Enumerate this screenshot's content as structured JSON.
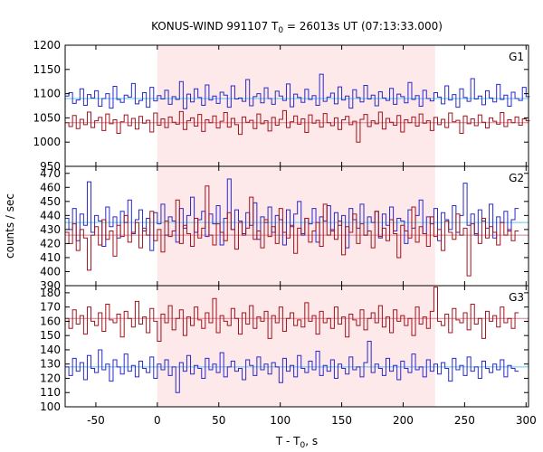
{
  "title": {
    "prefix": "KONUS-WIND 991107 T",
    "sub": "0",
    "suffix": " = 26013s UT (07:13:33.000)"
  },
  "ylabel": "counts / sec",
  "xlabel": {
    "prefix": "T - T",
    "sub": "0",
    "suffix": ", s"
  },
  "colors": {
    "red_series": "#a0141e",
    "blue_series": "#2a2ac8",
    "red_background_line": "#e07a8a",
    "blue_background_line": "#5fc6e8",
    "highlight": "#fde8ea",
    "axis": "#000000"
  },
  "chart_data": {
    "type": "line",
    "style": "step histogram, 3 stacked panels sharing x axis",
    "title": "KONUS-WIND 991107 T0 = 26013s UT (07:13:33.000)",
    "xlabel": "T - T0, s",
    "ylabel": "counts / sec",
    "xlim": [
      -75,
      302
    ],
    "xticks": [
      -50,
      0,
      50,
      100,
      150,
      200,
      250,
      300
    ],
    "highlight_interval": [
      0,
      226
    ],
    "bin_width_s": 3,
    "panels": [
      {
        "label": "G1",
        "ylim": [
          950,
          1200
        ],
        "yticks": [
          950,
          1000,
          1050,
          1100,
          1150,
          1200
        ],
        "blue_background": 1090,
        "red_background": 1040,
        "series": [
          {
            "color": "blue",
            "x_start": -75,
            "step": 3,
            "values": [
              1095,
              1102,
              1080,
              1087,
              1110,
              1076,
              1098,
              1091,
              1106,
              1074,
              1090,
              1100,
              1070,
              1115,
              1088,
              1082,
              1097,
              1093,
              1121,
              1079,
              1086,
              1102,
              1072,
              1113,
              1085,
              1096,
              1089,
              1107,
              1078,
              1094,
              1088,
              1125,
              1069,
              1099,
              1083,
              1110,
              1092,
              1076,
              1118,
              1087,
              1095,
              1080,
              1103,
              1097,
              1072,
              1116,
              1089,
              1091,
              1084,
              1129,
              1075,
              1094,
              1100,
              1081,
              1112,
              1090,
              1078,
              1105,
              1095,
              1086,
              1120,
              1073,
              1099,
              1092,
              1082,
              1109,
              1088,
              1096,
              1076,
              1140,
              1084,
              1093,
              1101,
              1079,
              1114,
              1087,
              1095,
              1070,
              1108,
              1092,
              1083,
              1117,
              1089,
              1097,
              1075,
              1104,
              1091,
              1086,
              1111,
              1078,
              1099,
              1094,
              1081,
              1123,
              1088,
              1096,
              1074,
              1107,
              1090,
              1085,
              1102,
              1093,
              1079,
              1116,
              1087,
              1098,
              1072,
              1110,
              1092,
              1084,
              1131,
              1089,
              1095,
              1077,
              1106,
              1091,
              1083,
              1119,
              1088,
              1097,
              1074,
              1103,
              1090,
              1086,
              1113,
              1094
            ]
          },
          {
            "color": "red",
            "x_start": -75,
            "step": 3,
            "values": [
              1040,
              1032,
              1055,
              1028,
              1047,
              1036,
              1062,
              1030,
              1044,
              1051,
              1024,
              1058,
              1038,
              1046,
              1018,
              1042,
              1056,
              1034,
              1049,
              1027,
              1053,
              1039,
              1045,
              1021,
              1060,
              1035,
              1048,
              1030,
              1052,
              1041,
              1037,
              1063,
              1026,
              1044,
              1050,
              1033,
              1057,
              1022,
              1046,
              1040,
              1054,
              1029,
              1043,
              1061,
              1031,
              1049,
              1036,
              1016,
              1052,
              1041,
              1045,
              1028,
              1058,
              1038,
              1044,
              1023,
              1051,
              1035,
              1047,
              1065,
              1030,
              1042,
              1054,
              1037,
              1048,
              1020,
              1056,
              1039,
              1045,
              1031,
              1059,
              1040,
              1034,
              1050,
              1026,
              1046,
              1053,
              1036,
              1043,
              1000,
              1047,
              1057,
              1032,
              1044,
              1038,
              1062,
              1027,
              1049,
              1041,
              1035,
              1055,
              1021,
              1046,
              1040,
              1052,
              1033,
              1058,
              1039,
              1044,
              1024,
              1051,
              1036,
              1047,
              1030,
              1060,
              1042,
              1045,
              1018,
              1054,
              1038,
              1048,
              1034,
              1056,
              1041,
              1029,
              1050,
              1043,
              1037,
              1061,
              1032,
              1046,
              1040,
              1052,
              1035,
              1048,
              1044
            ]
          }
        ]
      },
      {
        "label": "G2",
        "ylim": [
          390,
          475
        ],
        "yticks": [
          390,
          400,
          410,
          420,
          430,
          440,
          450,
          460,
          470
        ],
        "blue_background": 435,
        "red_background": 426,
        "series": [
          {
            "color": "blue",
            "x_start": -75,
            "step": 3,
            "values": [
              438,
              430,
              445,
              422,
              441,
              433,
              464,
              428,
              440,
              436,
              418,
              446,
              432,
              439,
              424,
              443,
              435,
              451,
              427,
              437,
              444,
              429,
              438,
              415,
              442,
              434,
              448,
              426,
              439,
              436,
              421,
              445,
              431,
              440,
              453,
              428,
              437,
              443,
              425,
              441,
              434,
              447,
              419,
              438,
              466,
              430,
              444,
              436,
              427,
              442,
              433,
              449,
              423,
              439,
              435,
              446,
              428,
              440,
              437,
              419,
              444,
              432,
              441,
              450,
              426,
              438,
              434,
              445,
              421,
              439,
              436,
              447,
              429,
              442,
              433,
              440,
              417,
              445,
              437,
              431,
              448,
              426,
              439,
              435,
              443,
              424,
              441,
              433,
              446,
              429,
              438,
              436,
              420,
              444,
              431,
              440,
              451,
              427,
              439,
              434,
              445,
              422,
              442,
              437,
              430,
              447,
              428,
              440,
              463,
              433,
              441,
              426,
              444,
              436,
              431,
              448,
              424,
              439,
              435,
              443,
              429,
              437,
              445
            ]
          },
          {
            "color": "red",
            "x_start": -75,
            "step": 3,
            "values": [
              428,
              420,
              434,
              415,
              430,
              424,
              401,
              426,
              432,
              419,
              437,
              423,
              429,
              411,
              433,
              425,
              440,
              421,
              428,
              435,
              417,
              431,
              426,
              443,
              422,
              430,
              414,
              436,
              425,
              429,
              451,
              420,
              433,
              427,
              418,
              438,
              424,
              431,
              461,
              426,
              419,
              434,
              428,
              422,
              442,
              430,
              416,
              435,
              426,
              431,
              453,
              423,
              429,
              417,
              437,
              425,
              432,
              420,
              445,
              428,
              424,
              433,
              413,
              431,
              427,
              438,
              421,
              429,
              435,
              418,
              448,
              426,
              430,
              423,
              436,
              412,
              432,
              428,
              441,
              420,
              434,
              426,
              429,
              417,
              443,
              425,
              431,
              422,
              437,
              427,
              410,
              433,
              429,
              424,
              446,
              421,
              432,
              427,
              418,
              439,
              425,
              430,
              415,
              436,
              428,
              423,
              441,
              426,
              431,
              397,
              434,
              427,
              420,
              438,
              424,
              432,
              428,
              419,
              435,
              426,
              430,
              422,
              429
            ]
          }
        ]
      },
      {
        "label": "G3",
        "ylim": [
          100,
          185
        ],
        "yticks": [
          100,
          110,
          120,
          130,
          140,
          150,
          160,
          170,
          180
        ],
        "blue_background": 128,
        "red_background": 162,
        "series": [
          {
            "color": "blue",
            "x_start": -75,
            "step": 3,
            "values": [
              128,
              122,
              134,
              125,
              131,
              119,
              136,
              127,
              124,
              140,
              126,
              130,
              118,
              133,
              128,
              123,
              137,
              125,
              129,
              121,
              132,
              127,
              124,
              135,
              120,
              130,
              126,
              133,
              122,
              128,
              110,
              131,
              125,
              136,
              123,
              129,
              127,
              120,
              134,
              126,
              130,
              124,
              138,
              121,
              128,
              132,
              125,
              127,
              119,
              133,
              129,
              122,
              135,
              126,
              130,
              123,
              131,
              128,
              117,
              134,
              125,
              129,
              121,
              136,
              127,
              124,
              132,
              126,
              139,
              122,
              129,
              125,
              133,
              120,
              130,
              127,
              123,
              135,
              126,
              128,
              121,
              131,
              146,
              124,
              130,
              127,
              122,
              134,
              125,
              129,
              119,
              132,
              127,
              124,
              137,
              126,
              128,
              121,
              133,
              125,
              130,
              123,
              131,
              127,
              118,
              134,
              126,
              129,
              122,
              135,
              125,
              128,
              120,
              132,
              127,
              124,
              130,
              126,
              133,
              121,
              129,
              127,
              125
            ]
          },
          {
            "color": "red",
            "x_start": -75,
            "step": 3,
            "values": [
              162,
              155,
              168,
              158,
              164,
              151,
              170,
              160,
              157,
              166,
              153,
              172,
              161,
              159,
              165,
              149,
              167,
              162,
              156,
              174,
              158,
              163,
              152,
              169,
              160,
              146,
              165,
              159,
              171,
              154,
              162,
              168,
              150,
              163,
              157,
              170,
              161,
              155,
              166,
              159,
              176,
              152,
              164,
              160,
              157,
              169,
              162,
              151,
              166,
              158,
              171,
              155,
              163,
              160,
              167,
              148,
              164,
              159,
              170,
              153,
              162,
              166,
              157,
              161,
              156,
              173,
              160,
              164,
              151,
              167,
              159,
              162,
              155,
              170,
              158,
              163,
              149,
              165,
              161,
              157,
              168,
              154,
              162,
              166,
              159,
              171,
              156,
              163,
              152,
              168,
              160,
              164,
              157,
              162,
              150,
              170,
              158,
              163,
              155,
              167,
              184,
              160,
              157,
              165,
              152,
              169,
              161,
              159,
              166,
              154,
              172,
              158,
              162,
              148,
              167,
              160,
              164,
              156,
              170,
              159,
              162,
              155,
              166
            ]
          }
        ]
      }
    ]
  }
}
